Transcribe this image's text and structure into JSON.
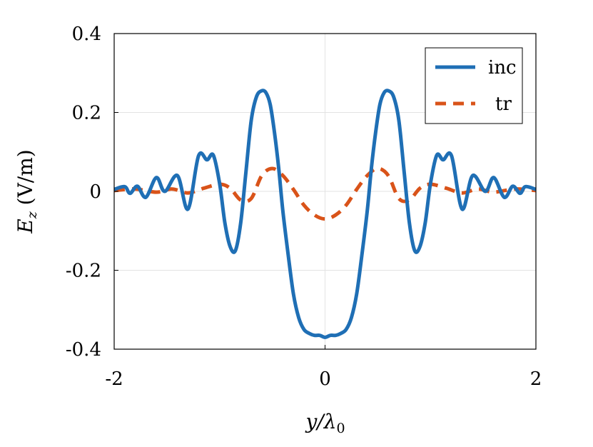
{
  "chart_data": {
    "type": "line",
    "xlabel": "y/λ0",
    "ylabel": "E_z (V/m)",
    "xlim": [
      -2,
      2
    ],
    "ylim": [
      -0.4,
      0.4
    ],
    "xticks": [
      -2,
      0,
      2
    ],
    "xtick_labels": [
      "-2",
      "0",
      "2"
    ],
    "yticks": [
      -0.4,
      -0.2,
      0,
      0.2,
      0.4
    ],
    "ytick_labels": [
      "-0.4",
      "-0.2",
      "0",
      "0.2",
      "0.4"
    ],
    "grid": true,
    "legend_position": "top-right",
    "series": [
      {
        "name": "inc",
        "color": "#1f6fb5",
        "style": "solid",
        "x": [
          -2.0,
          -1.9,
          -1.85,
          -1.78,
          -1.7,
          -1.6,
          -1.52,
          -1.4,
          -1.3,
          -1.2,
          -1.12,
          -1.06,
          -1.0,
          -0.95,
          -0.9,
          -0.85,
          -0.8,
          -0.75,
          -0.7,
          -0.65,
          -0.6,
          -0.56,
          -0.52,
          -0.48,
          -0.44,
          -0.4,
          -0.35,
          -0.3,
          -0.25,
          -0.2,
          -0.15,
          -0.1,
          -0.05,
          0.0,
          0.05,
          0.1,
          0.15,
          0.2,
          0.25,
          0.3,
          0.35,
          0.4,
          0.44,
          0.48,
          0.52,
          0.56,
          0.6,
          0.65,
          0.7,
          0.75,
          0.8,
          0.85,
          0.9,
          0.95,
          1.0,
          1.06,
          1.12,
          1.2,
          1.3,
          1.4,
          1.52,
          1.6,
          1.7,
          1.78,
          1.85,
          1.9,
          2.0
        ],
        "y": [
          0.005,
          0.012,
          -0.005,
          0.013,
          -0.015,
          0.035,
          0.0,
          0.04,
          -0.045,
          0.09,
          0.08,
          0.092,
          0.02,
          -0.08,
          -0.14,
          -0.15,
          -0.08,
          0.05,
          0.18,
          0.24,
          0.255,
          0.25,
          0.22,
          0.15,
          0.06,
          -0.05,
          -0.16,
          -0.26,
          -0.32,
          -0.35,
          -0.36,
          -0.365,
          -0.365,
          -0.37,
          -0.365,
          -0.365,
          -0.36,
          -0.35,
          -0.32,
          -0.26,
          -0.16,
          -0.05,
          0.06,
          0.15,
          0.22,
          0.25,
          0.255,
          0.24,
          0.18,
          0.05,
          -0.08,
          -0.15,
          -0.14,
          -0.08,
          0.02,
          0.092,
          0.08,
          0.09,
          -0.045,
          0.04,
          0.0,
          0.035,
          -0.015,
          0.013,
          -0.005,
          0.012,
          0.005
        ]
      },
      {
        "name": "tr",
        "color": "#d95319",
        "style": "dashed",
        "x": [
          -2.0,
          -1.8,
          -1.6,
          -1.45,
          -1.3,
          -1.15,
          -1.0,
          -0.9,
          -0.8,
          -0.7,
          -0.6,
          -0.5,
          -0.4,
          -0.3,
          -0.2,
          -0.1,
          0.0,
          0.1,
          0.2,
          0.3,
          0.4,
          0.5,
          0.6,
          0.7,
          0.8,
          0.9,
          1.0,
          1.15,
          1.3,
          1.45,
          1.6,
          1.8,
          2.0
        ],
        "y": [
          0.002,
          0.006,
          -0.002,
          0.006,
          -0.004,
          0.008,
          0.018,
          0.008,
          -0.022,
          -0.018,
          0.04,
          0.058,
          0.04,
          0.005,
          -0.035,
          -0.06,
          -0.07,
          -0.06,
          -0.035,
          0.005,
          0.04,
          0.058,
          0.04,
          -0.018,
          -0.022,
          0.008,
          0.018,
          0.008,
          -0.004,
          0.006,
          -0.002,
          0.006,
          0.002
        ]
      }
    ]
  }
}
